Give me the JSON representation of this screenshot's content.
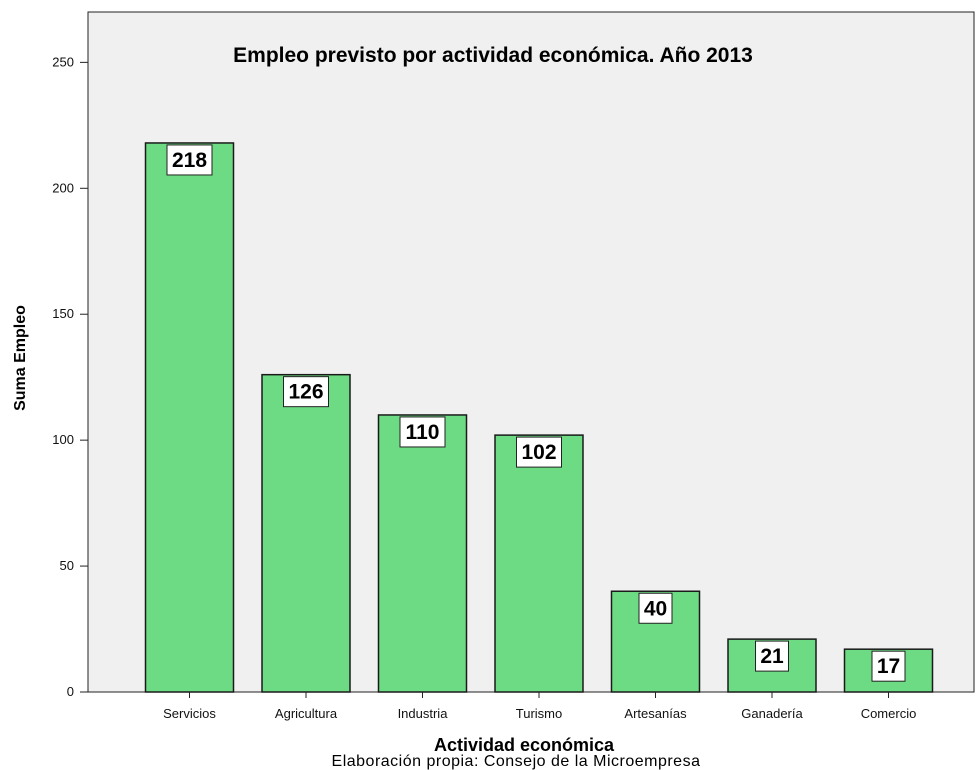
{
  "chart_data": {
    "type": "bar",
    "title": "Empleo previsto por actividad económica. Año 2013",
    "xlabel": "Actividad económica",
    "ylabel": "Suma Empleo",
    "source": "Elaboración propia: Consejo de la Microempresa",
    "categories": [
      "Servicios",
      "Agricultura",
      "Industria",
      "Turismo",
      "Artesanías",
      "Ganadería",
      "Comercio"
    ],
    "values": [
      218,
      126,
      110,
      102,
      40,
      21,
      17
    ],
    "ylim": [
      0,
      270
    ],
    "yticks": [
      0,
      50,
      100,
      150,
      200,
      250
    ],
    "grid": false,
    "colors": {
      "bar_fill": "#6ddb83",
      "bar_stroke": "#1a1a1a",
      "plot_background": "#f0f0f0",
      "label_box_fill": "#ffffff"
    }
  }
}
